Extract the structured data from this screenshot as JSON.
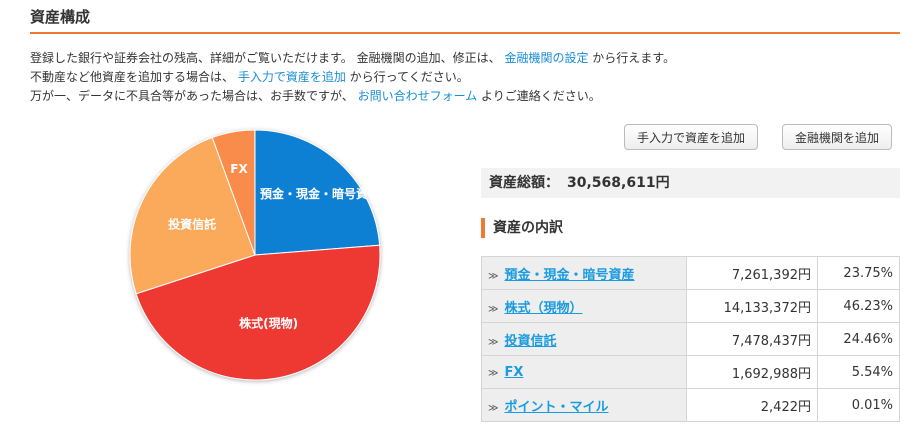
{
  "title": "資産構成",
  "desc": {
    "line1_a": "登録した銀行や証券会社の残高、詳細がご覧いただけます。 金融機関の追加、修正は、 ",
    "line1_link": "金融機関の設定",
    "line1_b": " から行えます。",
    "line2_a": "不動産など他資産を追加する場合は、 ",
    "line2_link": "手入力で資産を追加",
    "line2_b": " から行ってください。",
    "line3_a": "万が一、データに不具合等があった場合は、お手数ですが、 ",
    "line3_link": "お問い合わせフォーム",
    "line3_b": " よりご連絡ください。"
  },
  "buttons": {
    "manual": "手入力で資産を追加",
    "institution": "金融機関を追加"
  },
  "total": {
    "label": "資産総額：",
    "value": "30,568,611円"
  },
  "breakdown_title": "資産の内訳",
  "rows": [
    {
      "name": "預金・現金・暗号資産",
      "amount": "7,261,392円",
      "pct": "23.75%",
      "value": 23.75,
      "color": "#0a80d4",
      "chart_label": "預金・現金・暗号資"
    },
    {
      "name": "株式（現物）",
      "amount": "14,133,372円",
      "pct": "46.23%",
      "value": 46.23,
      "color": "#ee3833",
      "chart_label": "株式(現物)"
    },
    {
      "name": "投資信託",
      "amount": "7,478,437円",
      "pct": "24.46%",
      "value": 24.46,
      "color": "#fba95a",
      "chart_label": "投資信託"
    },
    {
      "name": "FX",
      "amount": "1,692,988円",
      "pct": "5.54%",
      "value": 5.54,
      "color": "#f98b4b",
      "chart_label": "FX"
    },
    {
      "name": "ポイント・マイル",
      "amount": "2,422円",
      "pct": "0.01%",
      "value": 0.01,
      "color": "#e4d84a",
      "chart_label": ""
    }
  ]
}
